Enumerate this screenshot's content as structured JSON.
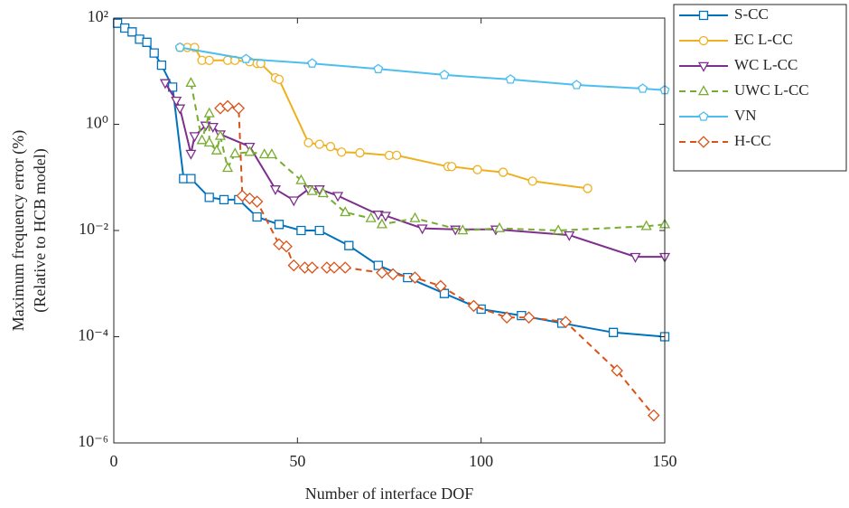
{
  "chart_data": {
    "type": "line",
    "ylog": true,
    "xlabel": "Number of interface DOF",
    "ylabel": [
      "Maximum frequency error (%)",
      "(Relative to HCB model)"
    ],
    "xlim": [
      0,
      150
    ],
    "xticks": [
      0,
      50,
      100,
      150
    ],
    "ylim": [
      1e-06,
      100
    ],
    "yticks": [
      {
        "value": 100,
        "label": "10²"
      },
      {
        "value": 1,
        "label": "10⁰"
      },
      {
        "value": 0.01,
        "label": "10⁻²"
      },
      {
        "value": 0.0001,
        "label": "10⁻⁴"
      },
      {
        "value": 1e-06,
        "label": "10⁻⁶"
      }
    ],
    "legend": "outside-top-right",
    "series": [
      {
        "name": "S-CC",
        "color": "#0072BD",
        "marker": "square",
        "line_style": "solid",
        "x": [
          1,
          3,
          5,
          7,
          9,
          11,
          13,
          16,
          19,
          21,
          26,
          30,
          34,
          39,
          45,
          51,
          56,
          64,
          72,
          80,
          90,
          100,
          111,
          122,
          136,
          150
        ],
        "values": [
          80,
          65,
          55,
          40,
          35,
          22,
          13,
          5,
          0.095,
          0.095,
          0.042,
          0.038,
          0.038,
          0.018,
          0.013,
          0.01,
          0.01,
          0.0052,
          0.0022,
          0.0013,
          0.00065,
          0.00033,
          0.00025,
          0.00018,
          0.00012,
          0.0001
        ]
      },
      {
        "name": "EC L-CC",
        "color": "#EDB120",
        "marker": "circle",
        "line_style": "solid",
        "x": [
          18,
          20,
          22,
          24,
          26,
          31,
          33,
          37,
          39,
          40,
          44,
          45,
          53,
          56,
          59,
          62,
          67,
          75,
          77,
          91,
          92,
          99,
          106,
          114,
          129
        ],
        "values": [
          28,
          28,
          28,
          16,
          16,
          16,
          16,
          15,
          14,
          14,
          7.5,
          7,
          0.45,
          0.42,
          0.38,
          0.3,
          0.29,
          0.26,
          0.26,
          0.16,
          0.16,
          0.14,
          0.125,
          0.085,
          0.062
        ]
      },
      {
        "name": "WC L-CC",
        "color": "#7E2F8E",
        "marker": "triangle-down",
        "line_style": "solid",
        "x": [
          14,
          17,
          18,
          21,
          22,
          25,
          27,
          29,
          37,
          44,
          49,
          53,
          56,
          61,
          72,
          74,
          84,
          93,
          104,
          124,
          142,
          150
        ],
        "values": [
          6,
          2.8,
          2,
          0.28,
          0.6,
          0.95,
          0.9,
          0.65,
          0.38,
          0.06,
          0.037,
          0.06,
          0.06,
          0.045,
          0.02,
          0.019,
          0.011,
          0.0105,
          0.0105,
          0.0082,
          0.0032,
          0.0032
        ]
      },
      {
        "name": "UWC L-CC",
        "color": "#77AC30",
        "marker": "triangle-up",
        "line_style": "dashed",
        "x": [
          21,
          24,
          26,
          26,
          28,
          29,
          31,
          33,
          37,
          41,
          43,
          51,
          54,
          57,
          63,
          70,
          73,
          82,
          95,
          105,
          121,
          145,
          150
        ],
        "values": [
          6,
          0.5,
          1.6,
          0.45,
          0.32,
          0.6,
          0.15,
          0.28,
          0.3,
          0.27,
          0.27,
          0.088,
          0.055,
          0.05,
          0.022,
          0.017,
          0.013,
          0.017,
          0.01,
          0.011,
          0.01,
          0.012,
          0.013
        ]
      },
      {
        "name": "VN",
        "color": "#4DBEEE",
        "marker": "pentagon",
        "line_style": "solid",
        "x": [
          18,
          36,
          54,
          72,
          90,
          108,
          126,
          144,
          150
        ],
        "values": [
          28,
          17,
          14,
          11,
          8.5,
          7,
          5.5,
          4.7,
          4.4
        ]
      },
      {
        "name": "H-CC",
        "color": "#D95319",
        "marker": "diamond",
        "line_style": "dashed",
        "x": [
          29,
          31,
          34,
          35,
          37,
          39,
          45,
          47,
          49,
          52,
          54,
          58,
          60,
          63,
          73,
          76,
          82,
          89,
          98,
          107,
          113,
          123,
          137,
          147
        ],
        "values": [
          2,
          2.2,
          2,
          0.045,
          0.04,
          0.035,
          0.0055,
          0.005,
          0.0022,
          0.002,
          0.002,
          0.002,
          0.002,
          0.002,
          0.0016,
          0.0015,
          0.0013,
          0.0009,
          0.00038,
          0.00023,
          0.00023,
          0.00019,
          2.3e-05,
          3.3e-06
        ]
      }
    ]
  }
}
